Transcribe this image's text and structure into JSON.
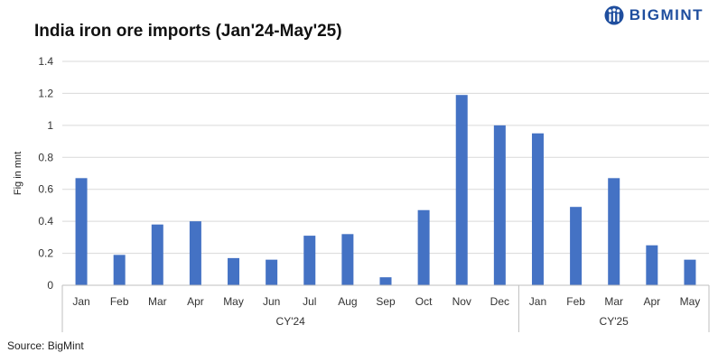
{
  "brand": {
    "name": "BIGMINT",
    "color": "#1f4e9e"
  },
  "source": "Source: BigMint",
  "chart_data": {
    "type": "bar",
    "title": "India iron ore imports (Jan'24-May'25)",
    "ylabel": "Fig in mnt",
    "xlabel": "",
    "ylim": [
      0,
      1.4
    ],
    "yticks": [
      "0",
      "0.2",
      "0.4",
      "0.6",
      "0.8",
      "1",
      "1.2",
      "1.4"
    ],
    "grid": true,
    "bar_color": "#4472c4",
    "categories": [
      "Jan",
      "Feb",
      "Mar",
      "Apr",
      "May",
      "Jun",
      "Jul",
      "Aug",
      "Sep",
      "Oct",
      "Nov",
      "Dec",
      "Jan",
      "Feb",
      "Mar",
      "Apr",
      "May"
    ],
    "values": [
      0.67,
      0.19,
      0.38,
      0.4,
      0.17,
      0.16,
      0.31,
      0.32,
      0.05,
      0.47,
      1.19,
      1.0,
      0.95,
      0.49,
      0.67,
      0.25,
      0.16
    ],
    "groups": [
      {
        "label": "CY'24",
        "count": 12
      },
      {
        "label": "CY'25",
        "count": 5
      }
    ]
  }
}
